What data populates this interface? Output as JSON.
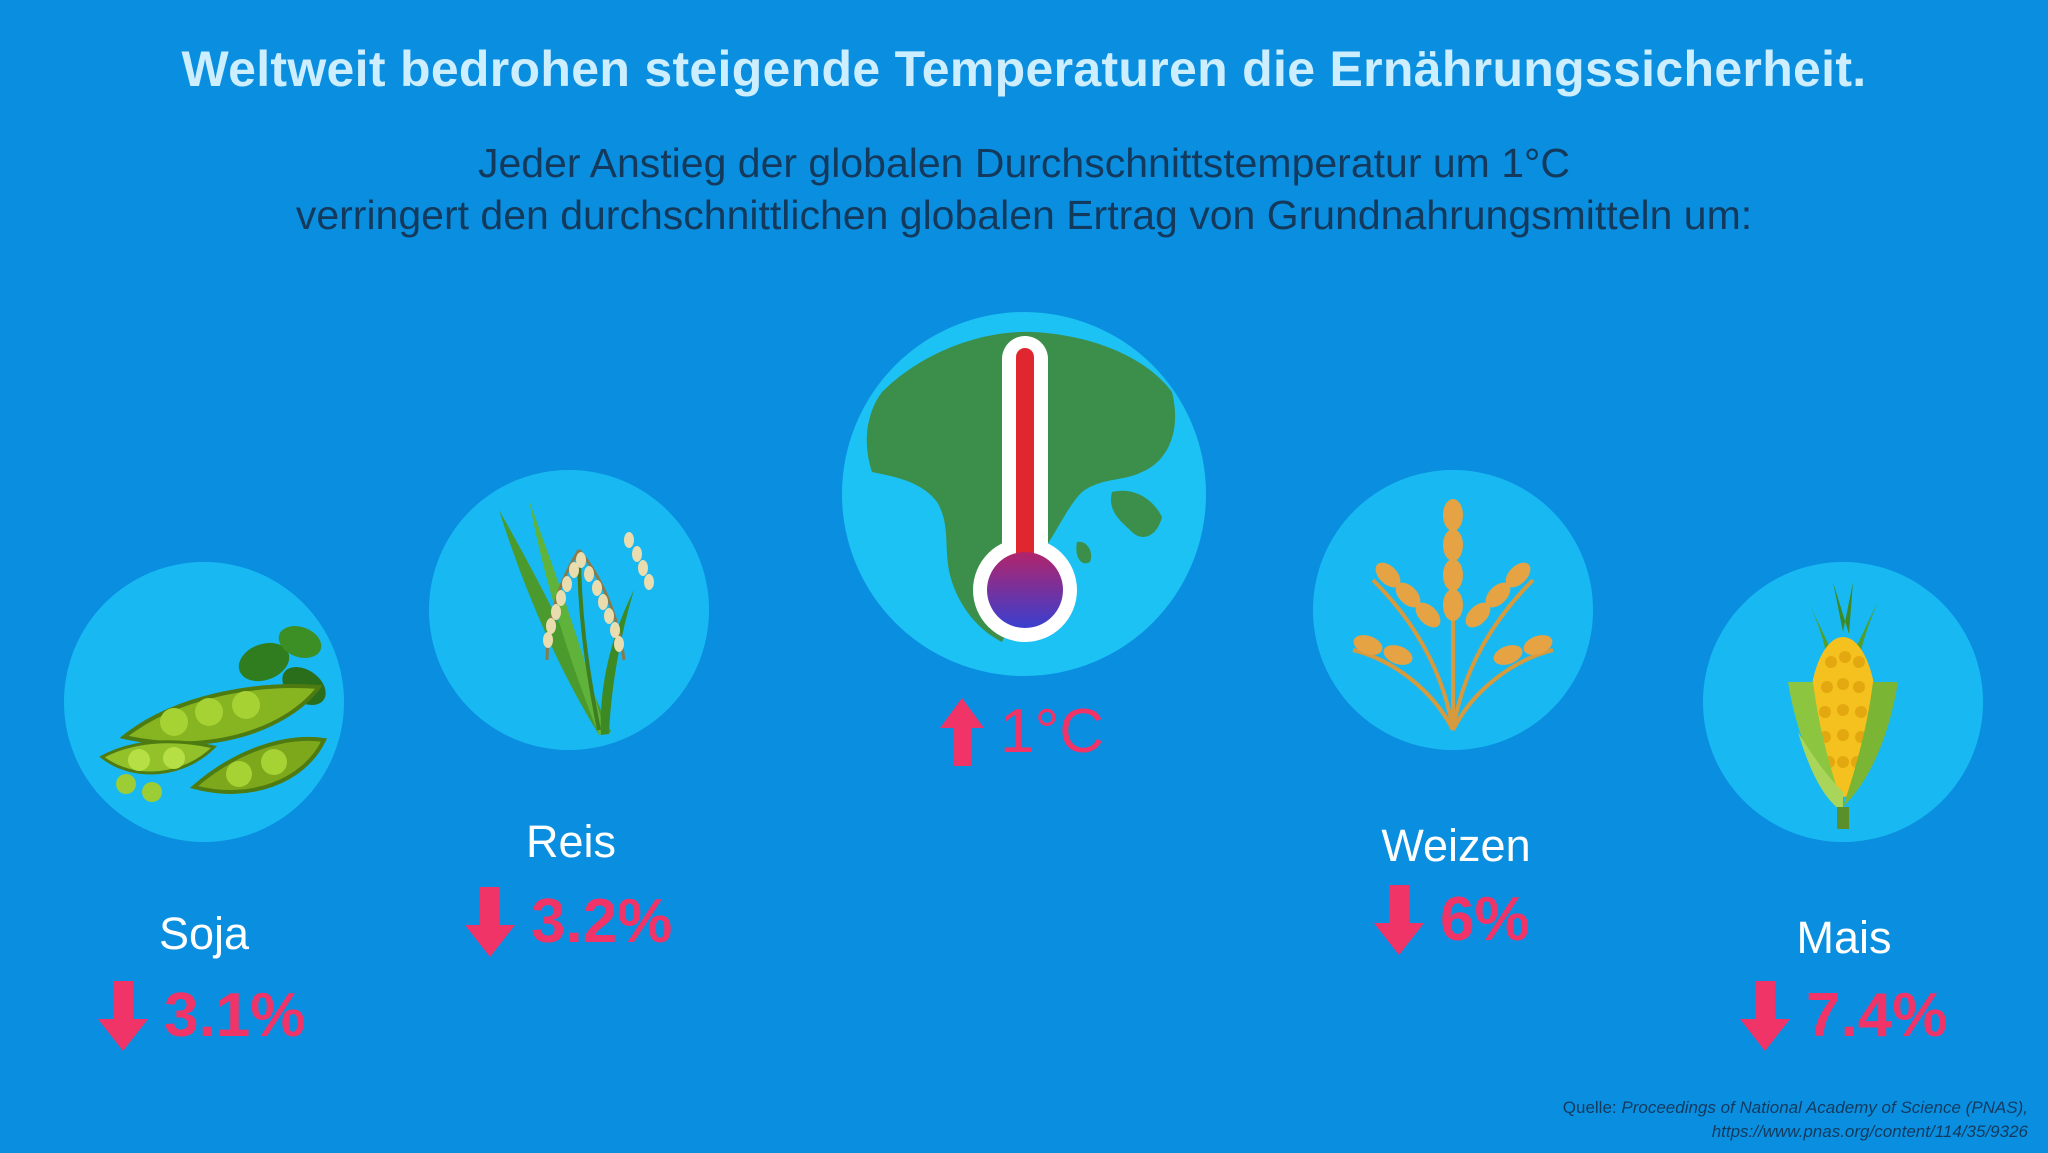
{
  "title": "Weltweit bedrohen steigende Temperaturen die Ernährungssicherheit.",
  "subtitle": {
    "line1": "Jeder Anstieg der globalen Durchschnittstemperatur um 1°C",
    "line2": "verringert den durchschnittlichen globalen Ertrag von Grundnahrungsmitteln um:"
  },
  "center": {
    "value": "1°C",
    "icon": "globe-thermometer-icon"
  },
  "crops": [
    {
      "name": "Soja",
      "value": "3.1%",
      "icon": "soybean-icon"
    },
    {
      "name": "Reis",
      "value": "3.2%",
      "icon": "rice-icon"
    },
    {
      "name": "Weizen",
      "value": "6%",
      "icon": "wheat-icon"
    },
    {
      "name": "Mais",
      "value": "7.4%",
      "icon": "corn-icon"
    }
  ],
  "source": {
    "prefix": "Quelle:",
    "name": "Proceedings of National Academy of Science (PNAS),",
    "url": "https://www.pnas.org/content/114/35/9326"
  },
  "colors": {
    "background": "#0a8fe0",
    "circle": "#18b9f2",
    "accent": "#f03468",
    "title": "#cdeeff",
    "subtitle": "#133a5c"
  }
}
